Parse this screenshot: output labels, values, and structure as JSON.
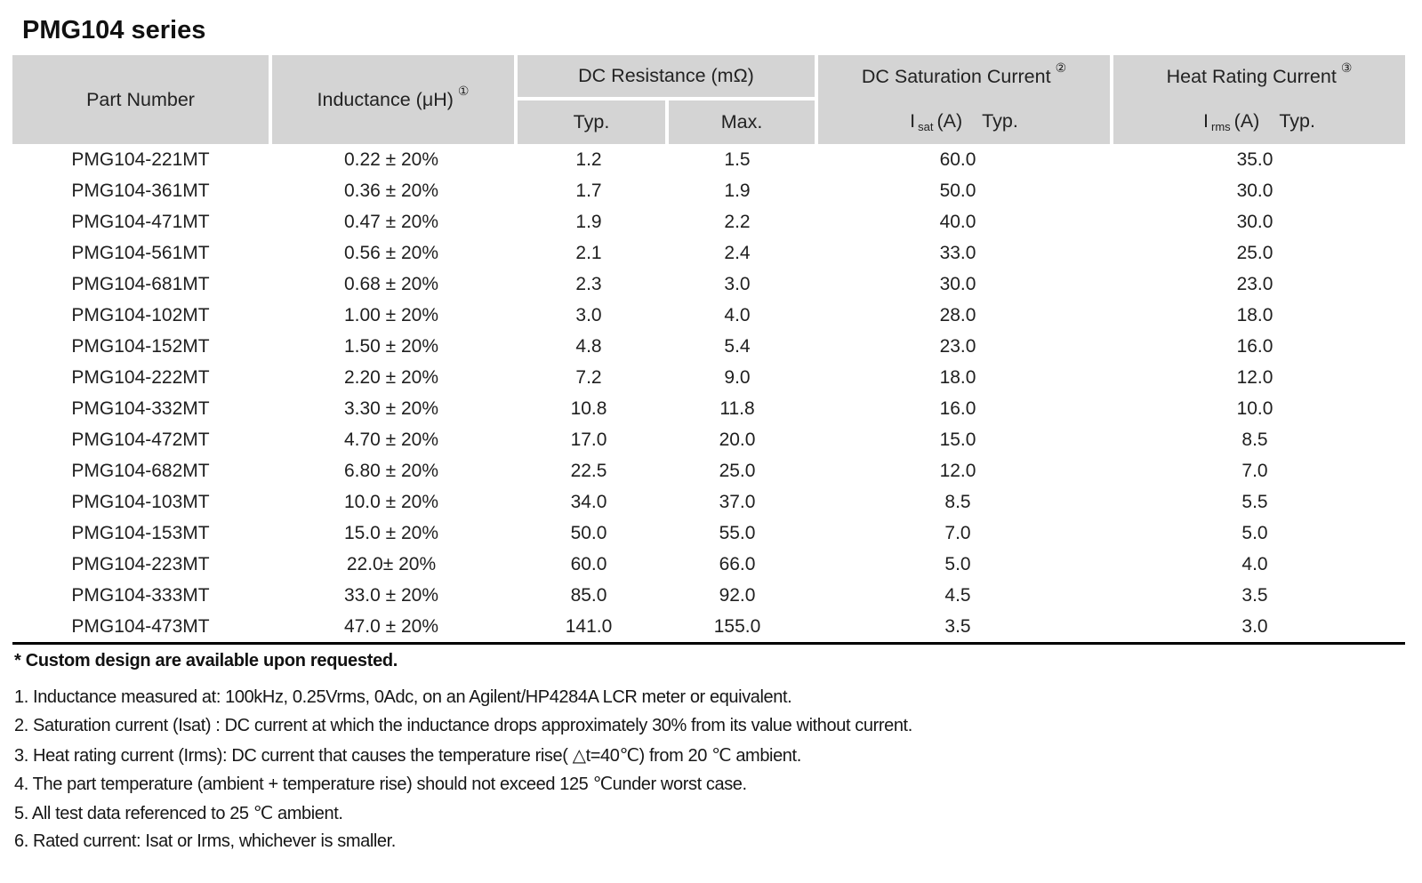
{
  "title": "PMG104 series",
  "table": {
    "header": {
      "part_number": "Part Number",
      "inductance": "Inductance (μH)",
      "inductance_sup": "①",
      "dc_resistance": "DC Resistance (mΩ)",
      "typ": "Typ.",
      "max": "Max.",
      "dc_saturation": "DC Saturation Current",
      "dc_saturation_sup": "②",
      "isat_symbol": "I",
      "isat_sub": "sat",
      "isat_unit": "(A)",
      "isat_typ": "Typ.",
      "heat_rating": "Heat Rating Current",
      "heat_rating_sup": "③",
      "irms_symbol": "I",
      "irms_sub": "rms",
      "irms_unit": "(A)",
      "irms_typ": "Typ."
    },
    "rows": [
      {
        "part": "PMG104-221MT",
        "inductance": "0.22 ± 20%",
        "typ": "1.2",
        "max": "1.5",
        "isat": "60.0",
        "irms": "35.0"
      },
      {
        "part": "PMG104-361MT",
        "inductance": "0.36 ± 20%",
        "typ": "1.7",
        "max": "1.9",
        "isat": "50.0",
        "irms": "30.0"
      },
      {
        "part": "PMG104-471MT",
        "inductance": "0.47 ± 20%",
        "typ": "1.9",
        "max": "2.2",
        "isat": "40.0",
        "irms": "30.0"
      },
      {
        "part": "PMG104-561MT",
        "inductance": "0.56 ± 20%",
        "typ": "2.1",
        "max": "2.4",
        "isat": "33.0",
        "irms": "25.0"
      },
      {
        "part": "PMG104-681MT",
        "inductance": "0.68 ± 20%",
        "typ": "2.3",
        "max": "3.0",
        "isat": "30.0",
        "irms": "23.0"
      },
      {
        "part": "PMG104-102MT",
        "inductance": "1.00 ± 20%",
        "typ": "3.0",
        "max": "4.0",
        "isat": "28.0",
        "irms": "18.0"
      },
      {
        "part": "PMG104-152MT",
        "inductance": "1.50 ± 20%",
        "typ": "4.8",
        "max": "5.4",
        "isat": "23.0",
        "irms": "16.0"
      },
      {
        "part": "PMG104-222MT",
        "inductance": "2.20 ± 20%",
        "typ": "7.2",
        "max": "9.0",
        "isat": "18.0",
        "irms": "12.0"
      },
      {
        "part": "PMG104-332MT",
        "inductance": "3.30 ± 20%",
        "typ": "10.8",
        "max": "11.8",
        "isat": "16.0",
        "irms": "10.0"
      },
      {
        "part": "PMG104-472MT",
        "inductance": "4.70 ± 20%",
        "typ": "17.0",
        "max": "20.0",
        "isat": "15.0",
        "irms": "8.5"
      },
      {
        "part": "PMG104-682MT",
        "inductance": "6.80 ± 20%",
        "typ": "22.5",
        "max": "25.0",
        "isat": "12.0",
        "irms": "7.0"
      },
      {
        "part": "PMG104-103MT",
        "inductance": "10.0 ± 20%",
        "typ": "34.0",
        "max": "37.0",
        "isat": "8.5",
        "irms": "5.5"
      },
      {
        "part": "PMG104-153MT",
        "inductance": "15.0 ± 20%",
        "typ": "50.0",
        "max": "55.0",
        "isat": "7.0",
        "irms": "5.0"
      },
      {
        "part": "PMG104-223MT",
        "inductance": "22.0± 20%",
        "typ": "60.0",
        "max": "66.0",
        "isat": "5.0",
        "irms": "4.0"
      },
      {
        "part": "PMG104-333MT",
        "inductance": "33.0 ± 20%",
        "typ": "85.0",
        "max": "92.0",
        "isat": "4.5",
        "irms": "3.5"
      },
      {
        "part": "PMG104-473MT",
        "inductance": "47.0 ± 20%",
        "typ": "141.0",
        "max": "155.0",
        "isat": "3.5",
        "irms": "3.0"
      }
    ]
  },
  "notes": {
    "custom": "* Custom design are available upon requested.",
    "items": [
      "1. Inductance measured at: 100kHz, 0.25Vrms, 0Adc, on an Agilent/HP4284A LCR meter or equivalent.",
      "2. Saturation current (Isat) : DC current at which the inductance drops approximately 30% from its value without current.",
      "3. Heat rating current (Irms): DC current that causes the temperature rise( △t=40℃) from 20 ℃ ambient.",
      "4. The part temperature (ambient + temperature rise) should not exceed 125 ℃under worst case.",
      "5. All test data referenced to 25 ℃ ambient.",
      "6. Rated current: Isat or Irms, whichever is smaller."
    ]
  },
  "colors": {
    "header_bg": "#d4d4d4",
    "text": "#1c1c1c",
    "rule": "#000000"
  }
}
